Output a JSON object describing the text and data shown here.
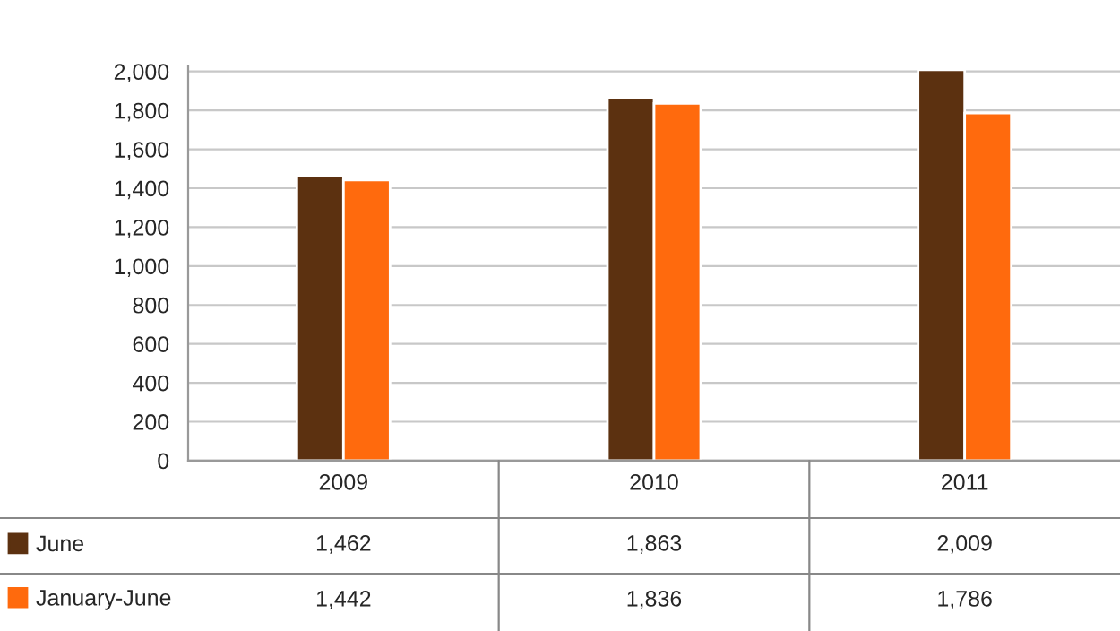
{
  "chart_data": {
    "type": "bar",
    "categories": [
      "2009",
      "2010",
      "2011"
    ],
    "series": [
      {
        "name": "June",
        "color": "#5c3110",
        "values": [
          1462,
          1863,
          2009
        ],
        "value_labels": [
          "1,462",
          "1,863",
          "2,009"
        ]
      },
      {
        "name": "January-June",
        "color": "#ff6a0d",
        "values": [
          1442,
          1836,
          1786
        ],
        "value_labels": [
          "1,442",
          "1,836",
          "1,786"
        ]
      }
    ],
    "ylim": [
      0,
      2030
    ],
    "yticks": [
      {
        "value": 0,
        "label": "0"
      },
      {
        "value": 200,
        "label": "200"
      },
      {
        "value": 400,
        "label": "400"
      },
      {
        "value": 600,
        "label": "600"
      },
      {
        "value": 800,
        "label": "800"
      },
      {
        "value": 1000,
        "label": "1,000"
      },
      {
        "value": 1200,
        "label": "1,200"
      },
      {
        "value": 1400,
        "label": "1,400"
      },
      {
        "value": 1600,
        "label": "1,600"
      },
      {
        "value": 1800,
        "label": "1,800"
      },
      {
        "value": 2000,
        "label": "2,000"
      }
    ],
    "grid": "y",
    "legend": "bottom left"
  }
}
